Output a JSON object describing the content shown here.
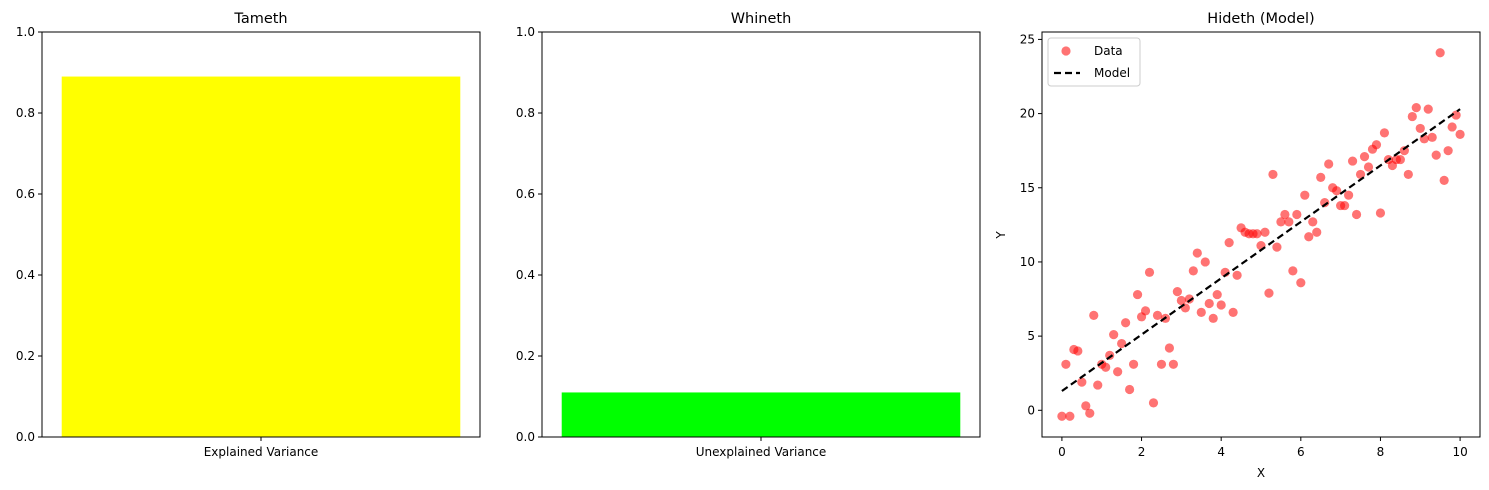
{
  "chart_data": [
    {
      "type": "bar",
      "title": "Tameth",
      "categories": [
        "Explained Variance"
      ],
      "values": [
        0.89
      ],
      "color": "#ffff00",
      "ylim": [
        0,
        1.0
      ],
      "yticks": [
        "0.0",
        "0.2",
        "0.4",
        "0.6",
        "0.8",
        "1.0"
      ],
      "xlabel": "",
      "ylabel": ""
    },
    {
      "type": "bar",
      "title": "Whineth",
      "categories": [
        "Unexplained Variance"
      ],
      "values": [
        0.11
      ],
      "color": "#00ff00",
      "ylim": [
        0,
        1.0
      ],
      "yticks": [
        "0.0",
        "0.2",
        "0.4",
        "0.6",
        "0.8",
        "1.0"
      ],
      "xlabel": "",
      "ylabel": ""
    },
    {
      "type": "scatter",
      "title": "Hideth (Model)",
      "xlabel": "X",
      "ylabel": "Y",
      "xlim": [
        -0.5,
        10.5
      ],
      "ylim": [
        -1.8,
        25.5
      ],
      "xticks": [
        "0",
        "2",
        "4",
        "6",
        "8",
        "10"
      ],
      "yticks": [
        "0",
        "5",
        "10",
        "15",
        "20",
        "25"
      ],
      "legend": {
        "position": "upper-left",
        "entries": [
          "Data",
          "Model"
        ]
      },
      "series": [
        {
          "name": "Data",
          "color": "#ff0000",
          "points": [
            [
              0.0,
              -0.4
            ],
            [
              0.1,
              3.1
            ],
            [
              0.2,
              -0.4
            ],
            [
              0.3,
              4.1
            ],
            [
              0.4,
              4.0
            ],
            [
              0.5,
              1.9
            ],
            [
              0.6,
              0.3
            ],
            [
              0.7,
              -0.2
            ],
            [
              0.8,
              6.4
            ],
            [
              0.9,
              1.7
            ],
            [
              1.0,
              3.1
            ],
            [
              1.1,
              2.9
            ],
            [
              1.2,
              3.7
            ],
            [
              1.3,
              5.1
            ],
            [
              1.4,
              2.6
            ],
            [
              1.5,
              4.5
            ],
            [
              1.6,
              5.9
            ],
            [
              1.7,
              1.4
            ],
            [
              1.8,
              3.1
            ],
            [
              1.9,
              7.8
            ],
            [
              2.0,
              6.3
            ],
            [
              2.1,
              6.7
            ],
            [
              2.2,
              9.3
            ],
            [
              2.3,
              0.5
            ],
            [
              2.4,
              6.4
            ],
            [
              2.5,
              3.1
            ],
            [
              2.6,
              6.2
            ],
            [
              2.7,
              4.2
            ],
            [
              2.8,
              3.1
            ],
            [
              2.9,
              8.0
            ],
            [
              3.0,
              7.4
            ],
            [
              3.1,
              6.9
            ],
            [
              3.2,
              7.5
            ],
            [
              3.3,
              9.4
            ],
            [
              3.4,
              10.6
            ],
            [
              3.5,
              6.6
            ],
            [
              3.6,
              10.0
            ],
            [
              3.7,
              7.2
            ],
            [
              3.8,
              6.2
            ],
            [
              3.9,
              7.8
            ],
            [
              4.0,
              7.1
            ],
            [
              4.1,
              9.3
            ],
            [
              4.2,
              11.3
            ],
            [
              4.3,
              6.6
            ],
            [
              4.4,
              9.1
            ],
            [
              4.5,
              12.3
            ],
            [
              4.6,
              12.0
            ],
            [
              4.7,
              11.9
            ],
            [
              4.8,
              11.9
            ],
            [
              4.9,
              11.9
            ],
            [
              5.0,
              11.1
            ],
            [
              5.1,
              12.0
            ],
            [
              5.2,
              7.9
            ],
            [
              5.3,
              15.9
            ],
            [
              5.4,
              11.0
            ],
            [
              5.5,
              12.7
            ],
            [
              5.6,
              13.2
            ],
            [
              5.7,
              12.7
            ],
            [
              5.8,
              9.4
            ],
            [
              5.9,
              13.2
            ],
            [
              6.0,
              8.6
            ],
            [
              6.1,
              14.5
            ],
            [
              6.2,
              11.7
            ],
            [
              6.3,
              12.7
            ],
            [
              6.4,
              12.0
            ],
            [
              6.5,
              15.7
            ],
            [
              6.6,
              14.0
            ],
            [
              6.7,
              16.6
            ],
            [
              6.8,
              15.0
            ],
            [
              6.9,
              14.8
            ],
            [
              7.0,
              13.8
            ],
            [
              7.1,
              13.8
            ],
            [
              7.2,
              14.5
            ],
            [
              7.3,
              16.8
            ],
            [
              7.4,
              13.2
            ],
            [
              7.5,
              15.9
            ],
            [
              7.6,
              17.1
            ],
            [
              7.7,
              16.4
            ],
            [
              7.8,
              17.6
            ],
            [
              7.9,
              17.9
            ],
            [
              8.0,
              13.3
            ],
            [
              8.1,
              18.7
            ],
            [
              8.2,
              16.9
            ],
            [
              8.3,
              16.5
            ],
            [
              8.4,
              16.9
            ],
            [
              8.5,
              16.9
            ],
            [
              8.6,
              17.5
            ],
            [
              8.7,
              15.9
            ],
            [
              8.8,
              19.8
            ],
            [
              8.9,
              20.4
            ],
            [
              9.0,
              19.0
            ],
            [
              9.1,
              18.3
            ],
            [
              9.2,
              20.3
            ],
            [
              9.3,
              18.4
            ],
            [
              9.4,
              17.2
            ],
            [
              9.5,
              24.1
            ],
            [
              9.6,
              15.5
            ],
            [
              9.7,
              17.5
            ],
            [
              9.8,
              19.1
            ],
            [
              9.9,
              19.9
            ],
            [
              10.0,
              18.6
            ]
          ]
        },
        {
          "name": "Model",
          "color": "#000000",
          "line": [
            [
              0.0,
              1.3
            ],
            [
              10.0,
              20.3
            ]
          ]
        }
      ]
    }
  ]
}
